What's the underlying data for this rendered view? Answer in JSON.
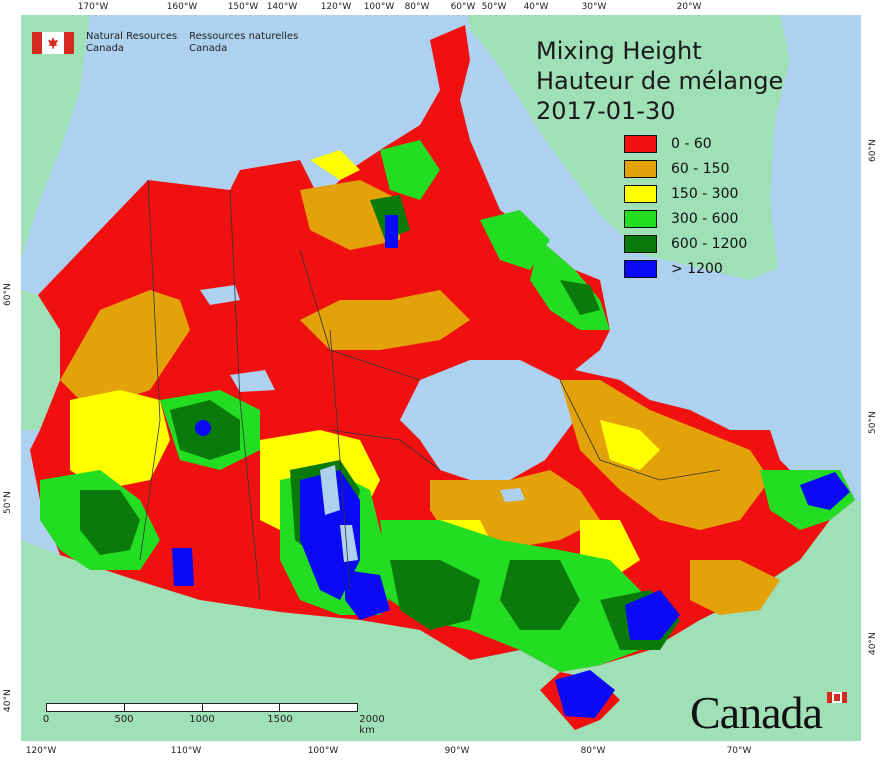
{
  "agency": {
    "name_en_1": "Natural Resources",
    "name_en_2": "Canada",
    "name_fr_1": "Ressources naturelles",
    "name_fr_2": "Canada"
  },
  "title": {
    "line_en": "Mixing Height",
    "line_fr": "Hauteur de mélange",
    "date": "2017-01-30"
  },
  "legend": [
    {
      "label": "0 - 60",
      "color": "#f01010"
    },
    {
      "label": "60 - 150",
      "color": "#e3a10a"
    },
    {
      "label": "150 - 300",
      "color": "#ffff00"
    },
    {
      "label": "300 - 600",
      "color": "#22dd22"
    },
    {
      "label": "600 - 1200",
      "color": "#0a7a0a"
    },
    {
      "label": "> 1200",
      "color": "#0a0af5"
    }
  ],
  "ticks": {
    "top": [
      "170°W",
      "160°W",
      "150°W",
      "140°W",
      "120°W",
      "100°W",
      "80°W",
      "60°W",
      "50°W",
      "40°W",
      "30°W",
      "20°W"
    ],
    "bottom": [
      "120°W",
      "110°W",
      "100°W",
      "90°W",
      "80°W",
      "70°W"
    ],
    "left": [
      "60°N",
      "50°N",
      "40°N"
    ],
    "right": [
      "60°N",
      "50°N",
      "40°N"
    ]
  },
  "scale_bar": {
    "labels": [
      "0",
      "500",
      "1000",
      "1500",
      "2000 km"
    ]
  },
  "wordmark": "Canada",
  "colors": {
    "ocean": "#aed1ef",
    "foreign_land": "#9fe0b6",
    "lake": "#aed1ef"
  }
}
